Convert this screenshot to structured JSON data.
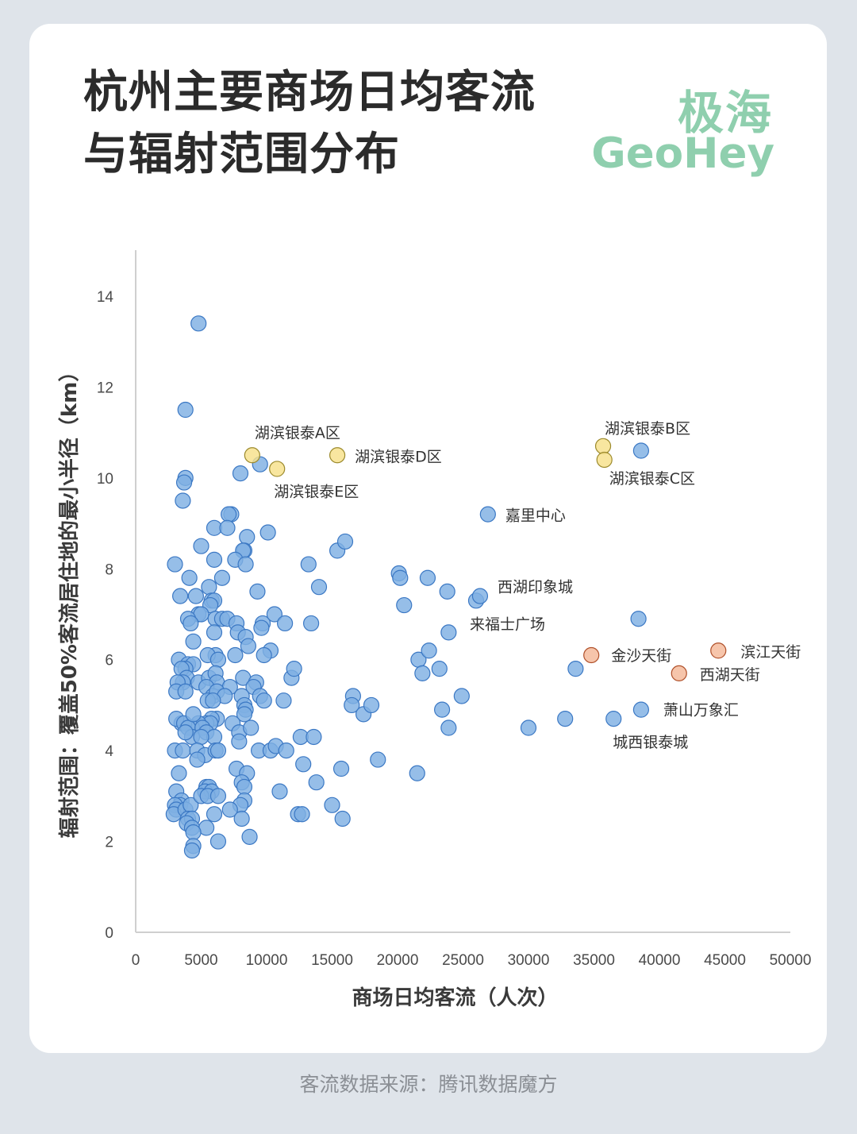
{
  "header": {
    "title": "杭州主要商场日均客流与辐射范围分布",
    "brand_cn": "极海",
    "brand_en": "GeoHey"
  },
  "footer": {
    "source": "客流数据来源：腾讯数据魔方"
  },
  "colors": {
    "background": "#dfe4ea",
    "card": "#ffffff",
    "brand": "#8fcfae",
    "point_blue": "#7fb0e3",
    "point_blue_edge": "#3b78c4",
    "point_yellow": "#f7e08a",
    "point_yellow_edge": "#9c8a2c",
    "point_orange": "#f4b899",
    "point_orange_edge": "#b0502a"
  },
  "chart_data": {
    "type": "scatter",
    "title": "杭州主要商场日均客流与辐射范围分布",
    "xlabel": "商场日均客流（人次）",
    "ylabel": "辐射范围：覆盖50%客流居住地的最小半径（km）",
    "xlim": [
      0,
      50000
    ],
    "ylim": [
      0,
      14
    ],
    "xticks": [
      "0",
      "5000",
      "10000",
      "15000",
      "20000",
      "25000",
      "30000",
      "35000",
      "40000",
      "45000",
      "50000"
    ],
    "yticks": [
      "0",
      "2",
      "4",
      "6",
      "8",
      "10",
      "12",
      "14"
    ],
    "grid": false,
    "series": [
      {
        "color": "blue",
        "points": [
          [
            4800,
            13.4
          ],
          [
            3800,
            11.5
          ],
          [
            3800,
            10.0
          ],
          [
            3700,
            9.9
          ],
          [
            3600,
            9.5
          ],
          [
            8000,
            10.1
          ],
          [
            9500,
            10.3
          ],
          [
            7300,
            9.2
          ],
          [
            7100,
            9.2
          ],
          [
            6000,
            8.9
          ],
          [
            7000,
            8.9
          ],
          [
            8500,
            8.7
          ],
          [
            10100,
            8.8
          ],
          [
            5000,
            8.5
          ],
          [
            8300,
            8.4
          ],
          [
            8200,
            8.4
          ],
          [
            6000,
            8.2
          ],
          [
            7600,
            8.2
          ],
          [
            8400,
            8.1
          ],
          [
            3000,
            8.1
          ],
          [
            4100,
            7.8
          ],
          [
            6600,
            7.8
          ],
          [
            9300,
            7.5
          ],
          [
            3400,
            7.4
          ],
          [
            4600,
            7.4
          ],
          [
            5600,
            7.6
          ],
          [
            5800,
            7.3
          ],
          [
            6000,
            7.3
          ],
          [
            5700,
            7.2
          ],
          [
            13200,
            8.1
          ],
          [
            14000,
            7.6
          ],
          [
            15400,
            8.4
          ],
          [
            16000,
            8.6
          ],
          [
            4800,
            7.0
          ],
          [
            5000,
            7.0
          ],
          [
            4000,
            6.9
          ],
          [
            4200,
            6.8
          ],
          [
            6100,
            6.9
          ],
          [
            6600,
            6.9
          ],
          [
            7000,
            6.9
          ],
          [
            7700,
            6.8
          ],
          [
            9700,
            6.8
          ],
          [
            9600,
            6.7
          ],
          [
            10600,
            7.0
          ],
          [
            11400,
            6.8
          ],
          [
            13400,
            6.8
          ],
          [
            7800,
            6.6
          ],
          [
            6000,
            6.6
          ],
          [
            8400,
            6.5
          ],
          [
            4400,
            6.4
          ],
          [
            8600,
            6.3
          ],
          [
            10300,
            6.2
          ],
          [
            9800,
            6.1
          ],
          [
            7600,
            6.1
          ],
          [
            6100,
            6.1
          ],
          [
            5500,
            6.1
          ],
          [
            6300,
            6.0
          ],
          [
            3300,
            6.0
          ],
          [
            4000,
            5.9
          ],
          [
            4400,
            5.9
          ],
          [
            3800,
            5.8
          ],
          [
            3500,
            5.8
          ],
          [
            3900,
            5.6
          ],
          [
            3600,
            5.5
          ],
          [
            3200,
            5.5
          ],
          [
            4800,
            5.5
          ],
          [
            5600,
            5.6
          ],
          [
            6100,
            5.7
          ],
          [
            6200,
            5.5
          ],
          [
            8200,
            5.6
          ],
          [
            9200,
            5.5
          ],
          [
            11900,
            5.6
          ],
          [
            12100,
            5.8
          ],
          [
            7200,
            5.4
          ],
          [
            9000,
            5.4
          ],
          [
            5400,
            5.4
          ],
          [
            3100,
            5.3
          ],
          [
            3800,
            5.3
          ],
          [
            5900,
            5.2
          ],
          [
            6200,
            5.3
          ],
          [
            6800,
            5.2
          ],
          [
            8100,
            5.2
          ],
          [
            5500,
            5.1
          ],
          [
            5900,
            5.1
          ],
          [
            9500,
            5.2
          ],
          [
            9800,
            5.1
          ],
          [
            11300,
            5.1
          ],
          [
            8300,
            5.0
          ],
          [
            8400,
            4.9
          ],
          [
            8300,
            4.8
          ],
          [
            6200,
            4.7
          ],
          [
            5800,
            4.7
          ],
          [
            5400,
            4.6
          ],
          [
            5700,
            4.6
          ],
          [
            4800,
            4.6
          ],
          [
            4300,
            4.5
          ],
          [
            3500,
            4.6
          ],
          [
            3100,
            4.7
          ],
          [
            3700,
            4.6
          ],
          [
            4000,
            4.5
          ],
          [
            4400,
            4.8
          ],
          [
            5100,
            4.5
          ],
          [
            5400,
            4.4
          ],
          [
            6000,
            4.3
          ],
          [
            4300,
            4.3
          ],
          [
            3800,
            4.4
          ],
          [
            7400,
            4.6
          ],
          [
            7900,
            4.4
          ],
          [
            8800,
            4.5
          ],
          [
            7900,
            4.2
          ],
          [
            5000,
            4.3
          ],
          [
            3000,
            4.0
          ],
          [
            3600,
            4.0
          ],
          [
            4700,
            4.0
          ],
          [
            5300,
            3.9
          ],
          [
            6100,
            4.0
          ],
          [
            6300,
            4.0
          ],
          [
            4700,
            3.8
          ],
          [
            9400,
            4.0
          ],
          [
            10300,
            4.0
          ],
          [
            10700,
            4.1
          ],
          [
            11500,
            4.0
          ],
          [
            12600,
            4.3
          ],
          [
            13600,
            4.3
          ],
          [
            12800,
            3.7
          ],
          [
            7700,
            3.6
          ],
          [
            3300,
            3.5
          ],
          [
            8500,
            3.5
          ],
          [
            8100,
            3.3
          ],
          [
            8300,
            3.2
          ],
          [
            5400,
            3.2
          ],
          [
            5600,
            3.2
          ],
          [
            5300,
            3.1
          ],
          [
            5800,
            3.1
          ],
          [
            3100,
            3.1
          ],
          [
            3500,
            2.9
          ],
          [
            3400,
            2.8
          ],
          [
            3000,
            2.8
          ],
          [
            3100,
            2.7
          ],
          [
            2900,
            2.6
          ],
          [
            3800,
            2.7
          ],
          [
            4200,
            2.8
          ],
          [
            5000,
            3.0
          ],
          [
            5500,
            3.0
          ],
          [
            6300,
            3.0
          ],
          [
            8300,
            2.9
          ],
          [
            8000,
            2.8
          ],
          [
            7200,
            2.7
          ],
          [
            6000,
            2.6
          ],
          [
            4000,
            2.5
          ],
          [
            4300,
            2.5
          ],
          [
            8100,
            2.5
          ],
          [
            3900,
            2.4
          ],
          [
            4300,
            2.3
          ],
          [
            5400,
            2.3
          ],
          [
            4400,
            2.2
          ],
          [
            8700,
            2.1
          ],
          [
            6300,
            2.0
          ],
          [
            4400,
            1.9
          ],
          [
            4300,
            1.8
          ],
          [
            11000,
            3.1
          ],
          [
            12400,
            2.6
          ],
          [
            12700,
            2.6
          ],
          [
            13800,
            3.3
          ],
          [
            15000,
            2.8
          ],
          [
            15800,
            2.5
          ],
          [
            15700,
            3.6
          ],
          [
            16600,
            5.2
          ],
          [
            16500,
            5.0
          ],
          [
            17400,
            4.8
          ],
          [
            18000,
            5.0
          ],
          [
            18500,
            3.8
          ],
          [
            21500,
            3.5
          ],
          [
            20100,
            7.9
          ],
          [
            20200,
            7.8
          ],
          [
            20500,
            7.2
          ],
          [
            22300,
            7.8
          ],
          [
            23800,
            7.5
          ],
          [
            21600,
            6.0
          ],
          [
            21900,
            5.7
          ],
          [
            22400,
            6.2
          ],
          [
            23200,
            5.8
          ],
          [
            23900,
            6.6
          ],
          [
            23400,
            4.9
          ],
          [
            23900,
            4.5
          ],
          [
            24900,
            5.2
          ],
          [
            26000,
            7.3
          ],
          [
            26300,
            7.4
          ],
          [
            26900,
            9.2
          ],
          [
            30000,
            4.5
          ],
          [
            32800,
            4.7
          ],
          [
            33600,
            5.8
          ],
          [
            36500,
            4.7
          ],
          [
            38400,
            6.9
          ],
          [
            38600,
            4.9
          ],
          [
            38600,
            10.6
          ]
        ]
      },
      {
        "color": "yellow",
        "points": [
          [
            8900,
            10.5
          ],
          [
            10800,
            10.2
          ],
          [
            15400,
            10.5
          ],
          [
            35700,
            10.7
          ],
          [
            35800,
            10.4
          ]
        ]
      },
      {
        "color": "orange",
        "points": [
          [
            34800,
            6.1
          ],
          [
            41500,
            5.7
          ],
          [
            44500,
            6.2
          ]
        ]
      }
    ],
    "annotations": [
      {
        "text": "湖滨银泰A区",
        "x": 8900,
        "y": 10.5
      },
      {
        "text": "湖滨银泰E区",
        "x": 10800,
        "y": 10.2
      },
      {
        "text": "湖滨银泰D区",
        "x": 15400,
        "y": 10.5
      },
      {
        "text": "湖滨银泰B区",
        "x": 35700,
        "y": 10.7
      },
      {
        "text": "湖滨银泰C区",
        "x": 35800,
        "y": 10.4
      },
      {
        "text": "嘉里中心",
        "x": 26900,
        "y": 9.2
      },
      {
        "text": "西湖印象城",
        "x": 26300,
        "y": 7.4
      },
      {
        "text": "来福士广场",
        "x": 26000,
        "y": 7.3
      },
      {
        "text": "金沙天街",
        "x": 34800,
        "y": 6.1
      },
      {
        "text": "滨江天街",
        "x": 44500,
        "y": 6.2
      },
      {
        "text": "西湖天街",
        "x": 41500,
        "y": 5.7
      },
      {
        "text": "萧山万象汇",
        "x": 38600,
        "y": 4.9
      },
      {
        "text": "城西银泰城",
        "x": 36500,
        "y": 4.7
      }
    ]
  }
}
